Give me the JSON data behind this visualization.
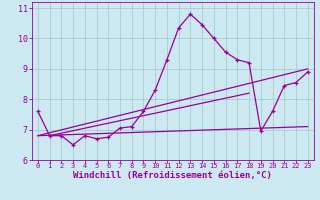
{
  "bg_color": "#cce8f0",
  "grid_color": "#aacccc",
  "line_color": "#990099",
  "xlabel": "Windchill (Refroidissement éolien,°C)",
  "xlabel_fontsize": 6.5,
  "xlim": [
    -0.5,
    23.5
  ],
  "ylim": [
    6,
    11.2
  ],
  "yticks": [
    6,
    7,
    8,
    9,
    10,
    11
  ],
  "xticks": [
    0,
    1,
    2,
    3,
    4,
    5,
    6,
    7,
    8,
    9,
    10,
    11,
    12,
    13,
    14,
    15,
    16,
    17,
    18,
    19,
    20,
    21,
    22,
    23
  ],
  "curve1_x": [
    0,
    1,
    2,
    3,
    4,
    5,
    6,
    7,
    8,
    9,
    10,
    11,
    12,
    13,
    14,
    15,
    16,
    17,
    18,
    19,
    20,
    21,
    22,
    23
  ],
  "curve1_y": [
    7.6,
    6.8,
    6.8,
    6.5,
    6.8,
    6.7,
    6.75,
    7.05,
    7.1,
    7.6,
    8.3,
    9.3,
    10.35,
    10.8,
    10.45,
    10.0,
    9.55,
    9.3,
    9.2,
    6.95,
    7.6,
    8.45,
    8.55,
    8.9
  ],
  "line1_x": [
    0,
    23
  ],
  "line1_y": [
    6.8,
    7.1
  ],
  "line2_x": [
    0,
    23
  ],
  "line2_y": [
    6.8,
    9.0
  ],
  "line3_x": [
    1,
    18
  ],
  "line3_y": [
    6.8,
    8.2
  ]
}
